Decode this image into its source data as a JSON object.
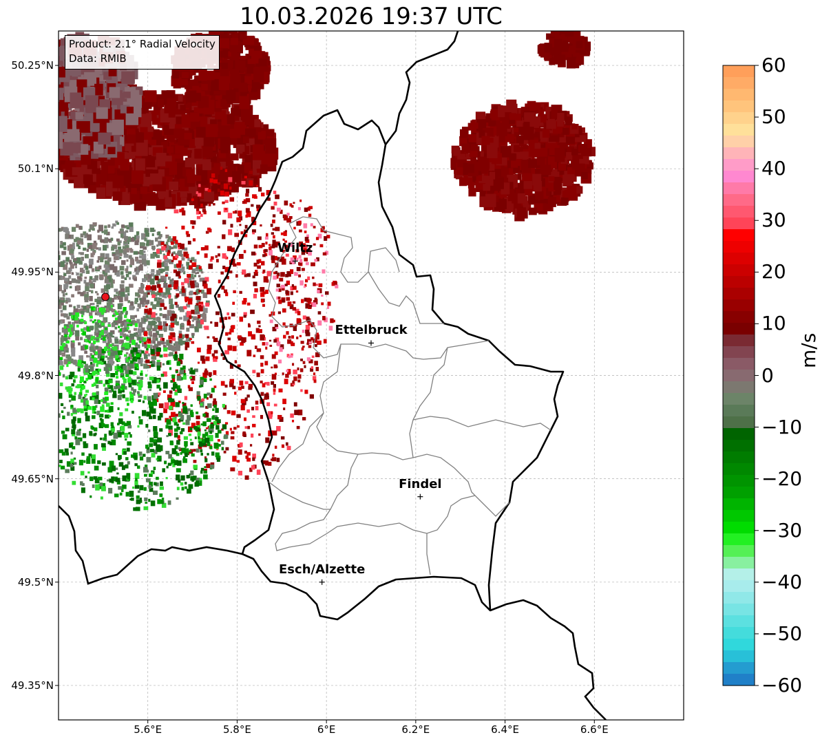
{
  "title": "10.03.2026 19:37 UTC",
  "info": {
    "product": "Product: 2.1° Radial Velocity",
    "data": "Data: RMIB"
  },
  "axes": {
    "lat_labels": [
      "50.25°N",
      "50.1°N",
      "49.95°N",
      "49.8°N",
      "49.65°N",
      "49.5°N",
      "49.35°N"
    ],
    "lon_labels": [
      "5.6°E",
      "5.8°E",
      "6°E",
      "6.2°E",
      "6.4°E",
      "6.6°E"
    ],
    "lat_values": [
      50.25,
      50.1,
      49.95,
      49.8,
      49.65,
      49.5,
      49.35
    ],
    "lon_values": [
      5.6,
      5.8,
      6.0,
      6.2,
      6.4,
      6.6
    ],
    "lon_range": [
      5.4,
      6.8
    ],
    "lat_range": [
      49.3,
      50.3
    ]
  },
  "cities": [
    {
      "name": "Wiltz",
      "lon": 5.93,
      "lat": 49.966
    },
    {
      "name": "Ettelbruck",
      "lon": 6.1,
      "lat": 49.847
    },
    {
      "name": "Findel",
      "lon": 6.21,
      "lat": 49.624
    },
    {
      "name": "Esch/Alzette",
      "lon": 5.99,
      "lat": 49.5
    }
  ],
  "radar_site": {
    "lon": 5.505,
    "lat": 49.914,
    "color": "#e8141c"
  },
  "colorbar": {
    "unit": "m/s",
    "ticks": [
      "60",
      "50",
      "40",
      "30",
      "20",
      "10",
      "0",
      "−10",
      "−20",
      "−30",
      "−40",
      "−50",
      "−60"
    ],
    "tick_values": [
      60,
      50,
      40,
      30,
      20,
      10,
      0,
      -10,
      -20,
      -30,
      -40,
      -50,
      -60
    ],
    "range": [
      -60,
      60
    ],
    "colors_top_to_bottom": [
      "#ff9f5a",
      "#ffab66",
      "#ffb870",
      "#ffc47c",
      "#ffd28c",
      "#ffe09a",
      "#ffd0a8",
      "#ffb4b8",
      "#ff9cc8",
      "#ff88d0",
      "#ff7aa8",
      "#ff6a88",
      "#ff5870",
      "#ff4458",
      "#ff0000",
      "#ee0000",
      "#dd0000",
      "#cc0000",
      "#bb0000",
      "#aa0000",
      "#990000",
      "#880000",
      "#7a0000",
      "#7a2a32",
      "#824450",
      "#8a5a66",
      "#886a70",
      "#7c7870",
      "#6c8468",
      "#5a7a58",
      "#4e7048",
      "#006400",
      "#007000",
      "#007c00",
      "#008800",
      "#009400",
      "#00a000",
      "#00b400",
      "#00c800",
      "#00dc00",
      "#22f022",
      "#55f055",
      "#88f0a0",
      "#b4f0e8",
      "#a8ecec",
      "#90e8e8",
      "#78e4e4",
      "#5ce0e0",
      "#44dcdc",
      "#30d8dc",
      "#28c0d8",
      "#249cd0",
      "#2080c8"
    ]
  },
  "colors": {
    "inbound_dark": "#800000",
    "inbound_red": "#cc0000",
    "zero_gray": "#7d7d76",
    "zero_green": "#5c7c5c",
    "outbound_green": "#0a8a0a",
    "outbound_bright": "#33dd33",
    "border_country": "#000000",
    "border_canton": "#808080"
  }
}
